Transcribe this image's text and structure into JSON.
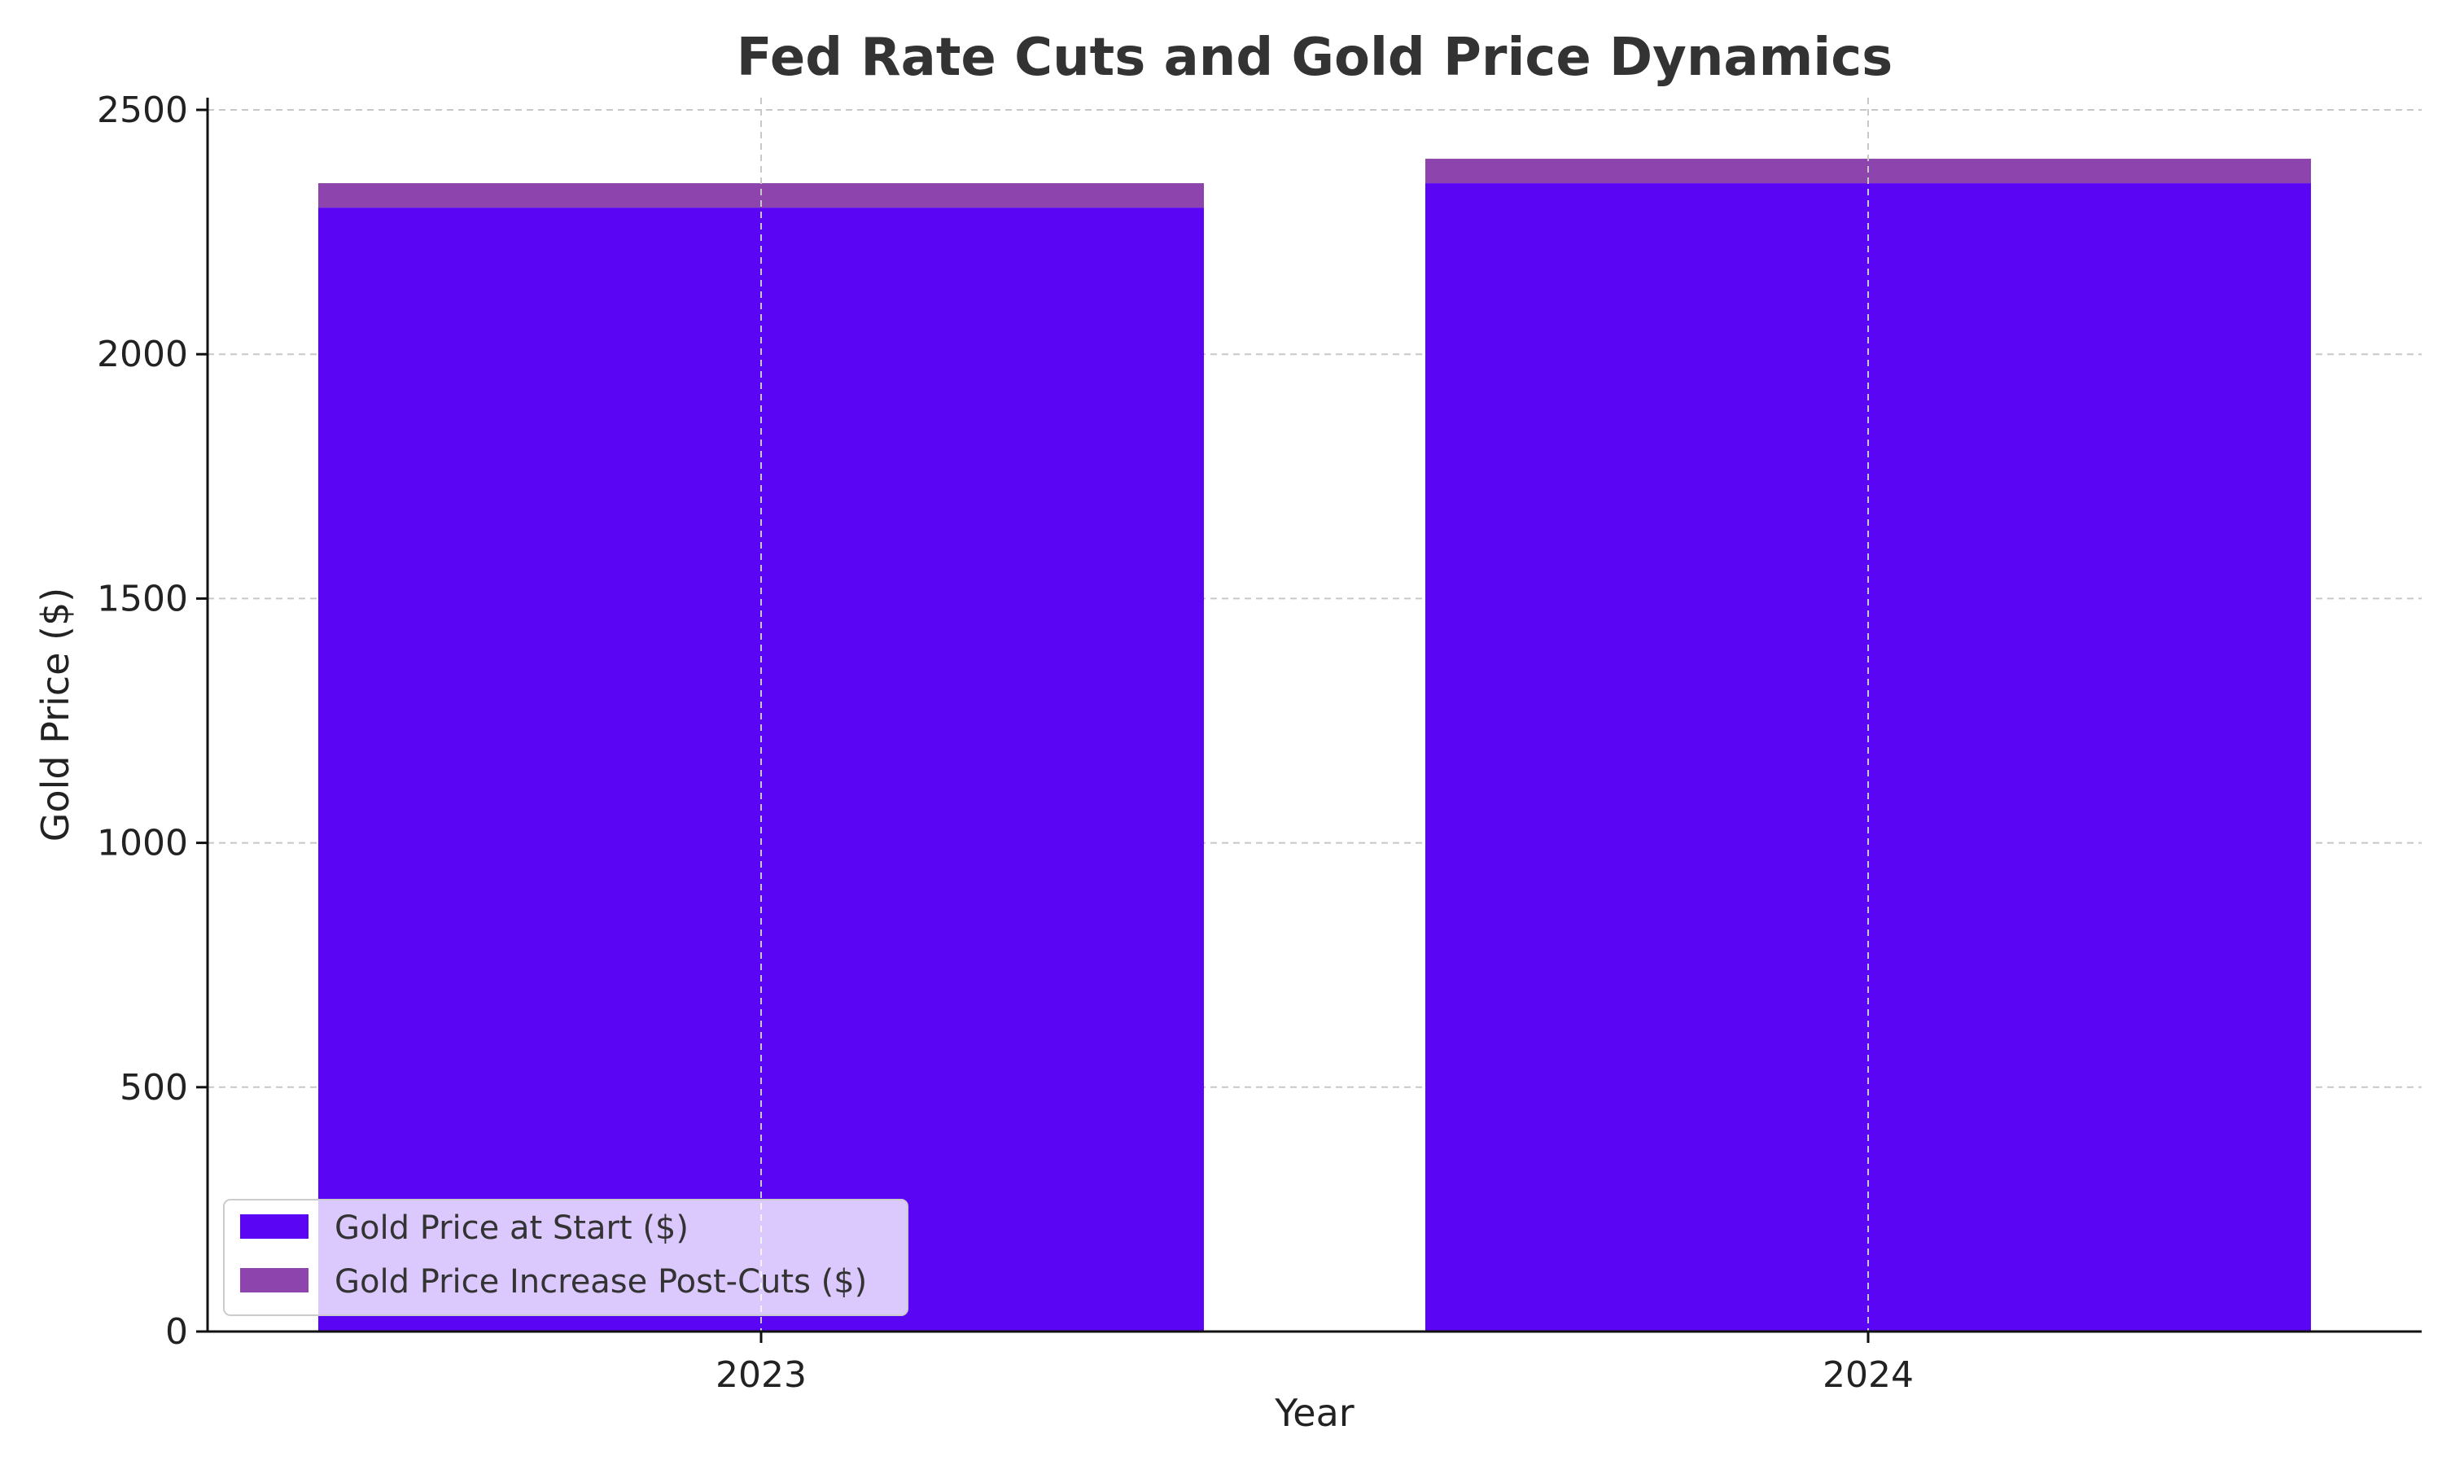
{
  "chart_data": {
    "type": "bar",
    "stacked": true,
    "title": "Fed Rate Cuts and Gold Price Dynamics",
    "xlabel": "Year",
    "ylabel": "Gold Price ($)",
    "categories": [
      "2023",
      "2024"
    ],
    "series": [
      {
        "name": "Gold Price at Start ($)",
        "values": [
          2300,
          2350
        ],
        "color": "#5a06f5"
      },
      {
        "name": "Gold Price Increase Post-Cuts ($)",
        "values": [
          50,
          50
        ],
        "color": "#8e44ad"
      }
    ],
    "ylim": [
      0,
      2525
    ],
    "yticks": [
      0,
      500,
      1000,
      1500,
      2000,
      2500
    ],
    "grid": true,
    "legend_position": "lower-left"
  }
}
